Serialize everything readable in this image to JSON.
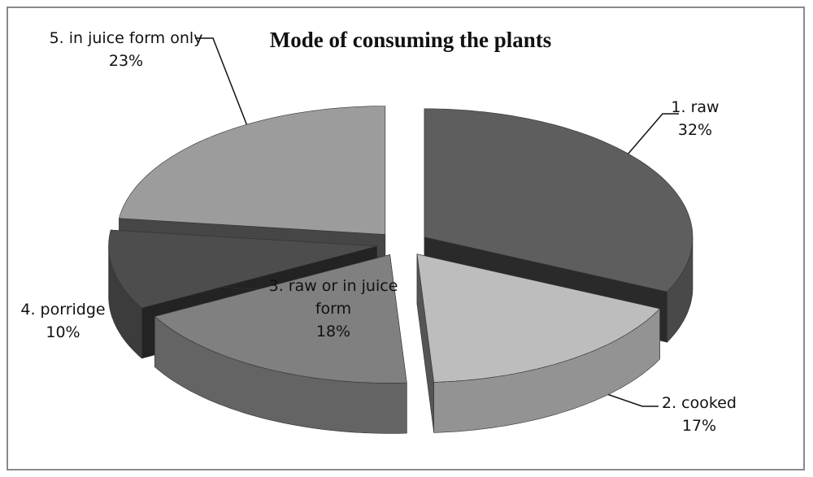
{
  "chart_data": {
    "type": "pie",
    "title": "Mode of consuming the plants",
    "categories": [
      "1. raw",
      "2. cooked",
      "3. raw or in juice form",
      "4. porridge",
      "5. in juice form only"
    ],
    "values": [
      32,
      17,
      18,
      10,
      23
    ],
    "value_labels": [
      "32%",
      "17%",
      "18%",
      "10%",
      "23%"
    ],
    "colors": [
      "#5e5e5e",
      "#bdbdbd",
      "#808080",
      "#4d4d4d",
      "#9c9c9c"
    ]
  }
}
